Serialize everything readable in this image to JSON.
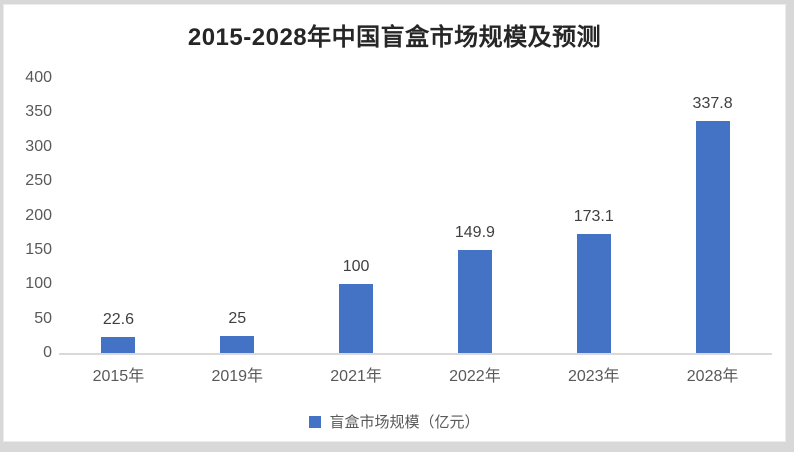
{
  "title": "2015-2028年中国盲盒市场规模及预测",
  "legend": {
    "label": "盲盒市场规模（亿元）",
    "swatch_color": "#4472c4"
  },
  "chart_data": {
    "type": "bar",
    "title": "2015-2028年中国盲盒市场规模及预测",
    "categories": [
      "2015年",
      "2019年",
      "2021年",
      "2022年",
      "2023年",
      "2028年"
    ],
    "values": [
      22.6,
      25,
      100,
      149.9,
      173.1,
      337.8
    ],
    "data_labels": [
      "22.6",
      "25",
      "100",
      "149.9",
      "173.1",
      "337.8"
    ],
    "xlabel": "",
    "ylabel": "",
    "ylim": [
      0,
      400
    ],
    "yticks": [
      0,
      50,
      100,
      150,
      200,
      250,
      300,
      350,
      400
    ],
    "grid": false,
    "legend_entries": [
      "盲盒市场规模（亿元）"
    ],
    "legend_position": "bottom",
    "bar_color": "#4472c4",
    "axis_line_color": "#d9d9d9",
    "tick_text_color": "#595959",
    "value_label_color": "#404040",
    "title_color": "#262626"
  }
}
